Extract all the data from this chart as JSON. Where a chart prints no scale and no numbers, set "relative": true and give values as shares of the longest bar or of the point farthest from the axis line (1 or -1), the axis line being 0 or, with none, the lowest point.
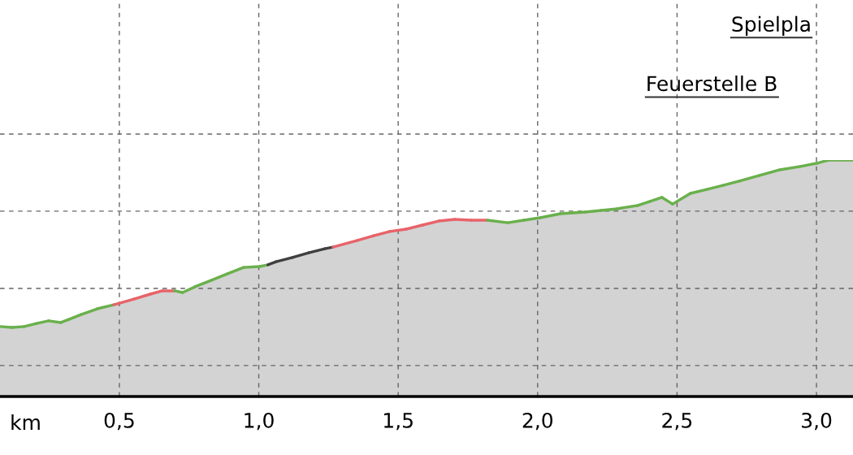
{
  "chart_data": {
    "type": "area",
    "relative": true,
    "xlabel": "km",
    "xlim": [
      0.072,
      3.131
    ],
    "xticks": [
      {
        "value": 0.5,
        "label": "0,5"
      },
      {
        "value": 1.0,
        "label": "1,0"
      },
      {
        "value": 1.5,
        "label": "1,5"
      },
      {
        "value": 2.0,
        "label": "2,0"
      },
      {
        "value": 2.5,
        "label": "2,5"
      },
      {
        "value": 3.0,
        "label": "3,0"
      }
    ],
    "grid": "x",
    "ref_lines": [
      {
        "axis": "y",
        "value": 1.11,
        "line_style": "dashed",
        "color": "#666666"
      },
      {
        "axis": "y",
        "value": 0.784,
        "line_style": "dashed",
        "color": "#666666"
      },
      {
        "axis": "y",
        "value": 0.457,
        "line_style": "dashed",
        "color": "#666666"
      },
      {
        "axis": "y",
        "value": 0.131,
        "line_style": "dashed",
        "color": "#666666"
      }
    ],
    "annotations": [
      "Spielpla",
      "Feuerstelle B"
    ],
    "series": [
      {
        "color": "#d3d3d3",
        "x": [
          0.072,
          0.115,
          0.159,
          0.203,
          0.246,
          0.29,
          0.319,
          0.363,
          0.421,
          0.48,
          0.552,
          0.611,
          0.654,
          0.698,
          0.727,
          0.771,
          0.829,
          0.888,
          0.946,
          1.004,
          1.033,
          1.062,
          1.121,
          1.179,
          1.237,
          1.266,
          1.354,
          1.412,
          1.47,
          1.529,
          1.587,
          1.645,
          1.703,
          1.762,
          1.82,
          1.893,
          1.951,
          2.009,
          2.082,
          2.17,
          2.228,
          2.286,
          2.359,
          2.403,
          2.446,
          2.484,
          2.548,
          2.607,
          2.665,
          2.723,
          2.796,
          2.869,
          2.942,
          3.0,
          3.044,
          3.131
        ],
        "values": [
          0.296,
          0.292,
          0.296,
          0.309,
          0.32,
          0.313,
          0.326,
          0.347,
          0.371,
          0.388,
          0.412,
          0.433,
          0.447,
          0.447,
          0.44,
          0.464,
          0.491,
          0.519,
          0.546,
          0.55,
          0.557,
          0.57,
          0.588,
          0.608,
          0.625,
          0.632,
          0.66,
          0.68,
          0.698,
          0.708,
          0.725,
          0.742,
          0.749,
          0.746,
          0.746,
          0.735,
          0.746,
          0.756,
          0.773,
          0.78,
          0.787,
          0.794,
          0.808,
          0.825,
          0.842,
          0.814,
          0.859,
          0.876,
          0.893,
          0.911,
          0.935,
          0.959,
          0.973,
          0.986,
          1.0,
          1.0
        ],
        "colors": [
          "#6ab04c",
          "#6ab04c",
          "#6ab04c",
          "#6ab04c",
          "#6ab04c",
          "#6ab04c",
          "#6ab04c",
          "#6ab04c",
          "#6ab04c",
          "#e8636a",
          "#e8636a",
          "#e8636a",
          "#e8636a",
          "#6ab04c",
          "#6ab04c",
          "#6ab04c",
          "#6ab04c",
          "#6ab04c",
          "#6ab04c",
          "#6ab04c",
          "#404040",
          "#404040",
          "#404040",
          "#404040",
          "#404040",
          "#e8636a",
          "#e8636a",
          "#e8636a",
          "#e8636a",
          "#e8636a",
          "#e8636a",
          "#e8636a",
          "#e8636a",
          "#e8636a",
          "#6ab04c",
          "#6ab04c",
          "#6ab04c",
          "#6ab04c",
          "#6ab04c",
          "#6ab04c",
          "#6ab04c",
          "#6ab04c",
          "#6ab04c",
          "#6ab04c",
          "#6ab04c",
          "#6ab04c",
          "#6ab04c",
          "#6ab04c",
          "#6ab04c",
          "#6ab04c",
          "#6ab04c",
          "#6ab04c",
          "#6ab04c",
          "#6ab04c",
          "#6ab04c",
          "#6ab04c"
        ]
      }
    ]
  }
}
